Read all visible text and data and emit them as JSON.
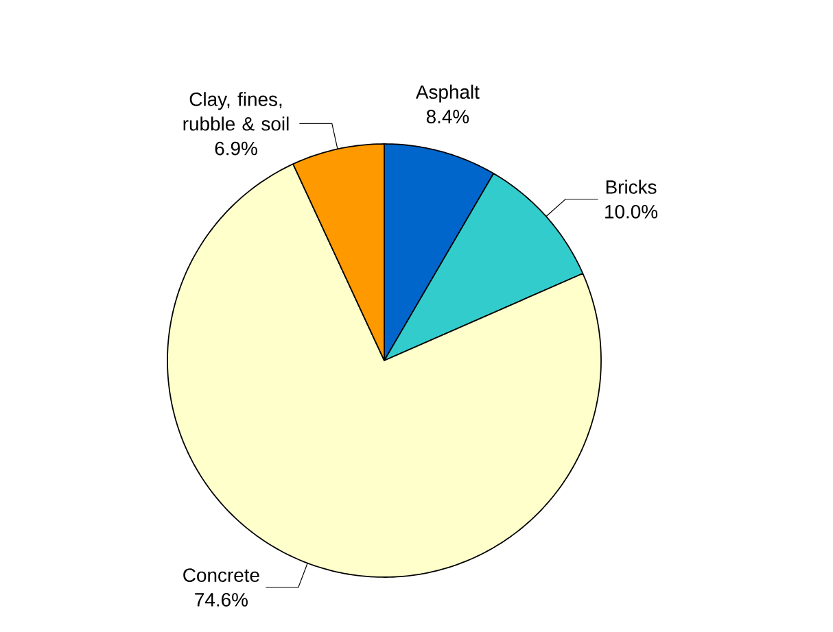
{
  "chart_data": {
    "type": "pie",
    "categories": [
      "Asphalt",
      "Bricks",
      "Concrete",
      "Clay, fines, rubble & soil"
    ],
    "values": [
      8.4,
      10.0,
      74.6,
      6.9
    ],
    "value_labels": [
      "8.4%",
      "10.0%",
      "74.6%",
      "6.9%"
    ],
    "colors": [
      "#0066cc",
      "#33cccc",
      "#ffffcc",
      "#ff9900"
    ]
  }
}
